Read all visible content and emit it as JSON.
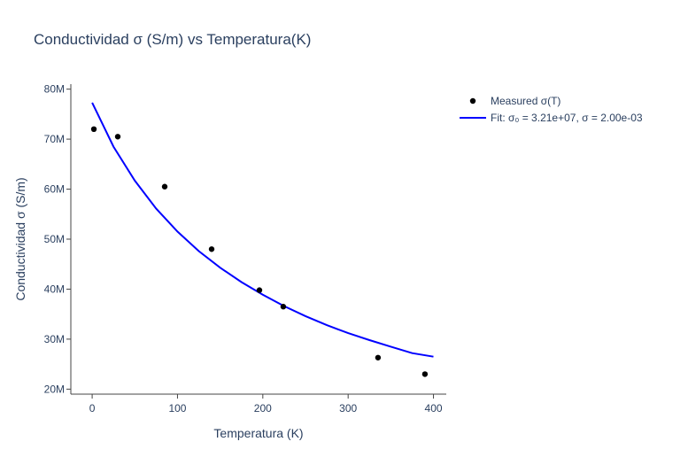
{
  "chart_data": {
    "type": "scatter",
    "title": "Conductividad σ (S/m) vs Temperatura(K)",
    "xlabel": "Temperatura (K)",
    "ylabel": "Conductividad σ (S/m)",
    "xlim": [
      -25,
      415
    ],
    "ylim": [
      19000000,
      81000000
    ],
    "x_ticks": [
      0,
      100,
      200,
      300,
      400
    ],
    "x_tick_labels": [
      "0",
      "100",
      "200",
      "300",
      "400"
    ],
    "y_ticks": [
      20000000,
      30000000,
      40000000,
      50000000,
      60000000,
      70000000,
      80000000
    ],
    "y_tick_labels": [
      "20M",
      "30M",
      "40M",
      "50M",
      "60M",
      "70M",
      "80M"
    ],
    "grid": false,
    "legend_position": "top-right",
    "series": [
      {
        "name": "Measured σ(T)",
        "mode": "markers",
        "color": "#000000",
        "x": [
          2,
          30,
          85,
          140,
          196,
          224,
          335,
          390
        ],
        "y": [
          72000000,
          70500000,
          60500000,
          48000000,
          39800000,
          36500000,
          26300000,
          23000000
        ]
      },
      {
        "name": "Fit: σ₀ = 3.21e+07, σ = 2.00e-03",
        "mode": "line",
        "color": "#0000ff",
        "x": [
          0,
          25,
          50,
          75,
          100,
          125,
          150,
          175,
          200,
          225,
          250,
          275,
          300,
          325,
          350,
          375,
          400
        ],
        "y": [
          77300000,
          68500000,
          61700000,
          56100000,
          51500000,
          47600000,
          44300000,
          41400000,
          38900000,
          36600000,
          34600000,
          32800000,
          31200000,
          29800000,
          28500000,
          27200000,
          26500000
        ]
      }
    ]
  }
}
